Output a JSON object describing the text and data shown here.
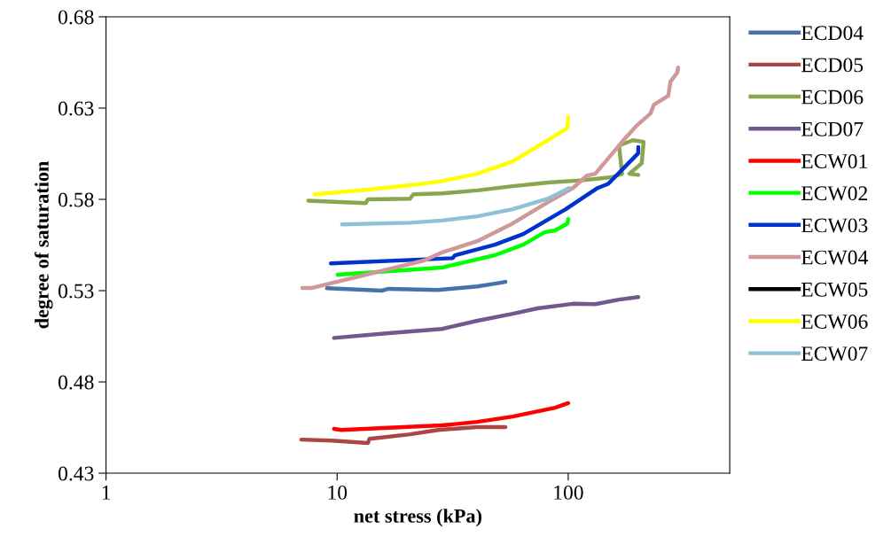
{
  "chart_data": {
    "type": "line",
    "xlabel": "net stress (kPa)",
    "ylabel": "degree of saturation",
    "log": "x",
    "xlim": [
      1,
      500
    ],
    "xticks": [
      1,
      10,
      100
    ],
    "ylim": [
      0.43,
      0.68
    ],
    "yticks": [
      0.43,
      0.48,
      0.53,
      0.58,
      0.63,
      0.68
    ],
    "grid": false,
    "legend": "right",
    "marker": "none",
    "line_style": "solid",
    "series": [
      {
        "name": "ECD04",
        "color": "#4572a7",
        "x": [
          9.04,
          15.6,
          16.7,
          27.4,
          40.4,
          48.2,
          53.5
        ],
        "values": [
          0.5313,
          0.53,
          0.531,
          0.5304,
          0.5323,
          0.5338,
          0.5348
        ]
      },
      {
        "name": "ECD05",
        "color": "#aa4643",
        "x": [
          7.0,
          9.5,
          13.6,
          13.8,
          20.7,
          27.4,
          40.4,
          53.5
        ],
        "values": [
          0.4484,
          0.4479,
          0.4465,
          0.4488,
          0.4513,
          0.4537,
          0.4553,
          0.4553
        ]
      },
      {
        "name": "ECD06",
        "color": "#89a54e",
        "x": [
          7.5,
          13.3,
          13.6,
          20.7,
          21.4,
          28.4,
          40.4,
          57.5,
          81.8,
          116,
          154,
          171,
          166,
          190.6,
          212,
          208,
          184,
          201
        ],
        "values": [
          0.5793,
          0.5779,
          0.58,
          0.5804,
          0.5828,
          0.5833,
          0.5849,
          0.5872,
          0.5892,
          0.5905,
          0.5921,
          0.594,
          0.6095,
          0.6124,
          0.6115,
          0.5998,
          0.594,
          0.5934
        ]
      },
      {
        "name": "ECD07",
        "color": "#71588f",
        "x": [
          9.7,
          16.7,
          28.4,
          40.4,
          57.5,
          73.6,
          104.7,
          131,
          166,
          201
        ],
        "values": [
          0.5041,
          0.5067,
          0.509,
          0.5135,
          0.5173,
          0.5203,
          0.5228,
          0.5226,
          0.5251,
          0.5265
        ]
      },
      {
        "name": "ECW01",
        "color": "#ff0000",
        "x": [
          9.7,
          10.4,
          28.4,
          40.4,
          57.5,
          87.8,
          100
        ],
        "values": [
          0.4543,
          0.4537,
          0.4562,
          0.4581,
          0.461,
          0.4659,
          0.4684
        ]
      },
      {
        "name": "ECW02",
        "color": "#00ff00",
        "x": [
          10.05,
          28.4,
          48.2,
          63.9,
          79,
          87.8,
          99.3,
          100
        ],
        "values": [
          0.5387,
          0.5426,
          0.5494,
          0.5552,
          0.562,
          0.563,
          0.5668,
          0.5692
        ]
      },
      {
        "name": "ECW03",
        "color": "#0033cc",
        "x": [
          9.4,
          31.6,
          32.4,
          48.2,
          63.9,
          97.5,
          134,
          149,
          201,
          201
        ],
        "values": [
          0.5449,
          0.5478,
          0.5494,
          0.5552,
          0.561,
          0.5746,
          0.5862,
          0.5885,
          0.6053,
          0.6086
        ]
      },
      {
        "name": "ECW04",
        "color": "#d09898",
        "x": [
          7.07,
          7.8,
          23.8,
          28.4,
          40.4,
          57.5,
          81.8,
          104.7,
          120.5,
          131,
          171,
          197,
          227,
          235,
          271,
          277,
          296,
          299
        ],
        "values": [
          0.5315,
          0.5315,
          0.5465,
          0.5509,
          0.5571,
          0.5668,
          0.5785,
          0.5862,
          0.593,
          0.594,
          0.6115,
          0.6202,
          0.627,
          0.6319,
          0.6367,
          0.6445,
          0.6493,
          0.6522
        ]
      },
      {
        "name": "ECW05",
        "color": "#000000"
      },
      {
        "name": "ECW06",
        "color": "#ffff00",
        "x": [
          8.0,
          13.6,
          22.2,
          28.4,
          40.4,
          57.5,
          81.8,
          99.3,
          100
        ],
        "values": [
          0.5828,
          0.5853,
          0.5882,
          0.59,
          0.594,
          0.6008,
          0.6125,
          0.6193,
          0.6251
        ]
      },
      {
        "name": "ECW07",
        "color": "#8fc0d4",
        "x": [
          10.5,
          20.7,
          28.4,
          40.4,
          57.5,
          81.8,
          101
        ],
        "values": [
          0.5663,
          0.5672,
          0.5684,
          0.5707,
          0.5746,
          0.5804,
          0.5862
        ]
      }
    ]
  }
}
